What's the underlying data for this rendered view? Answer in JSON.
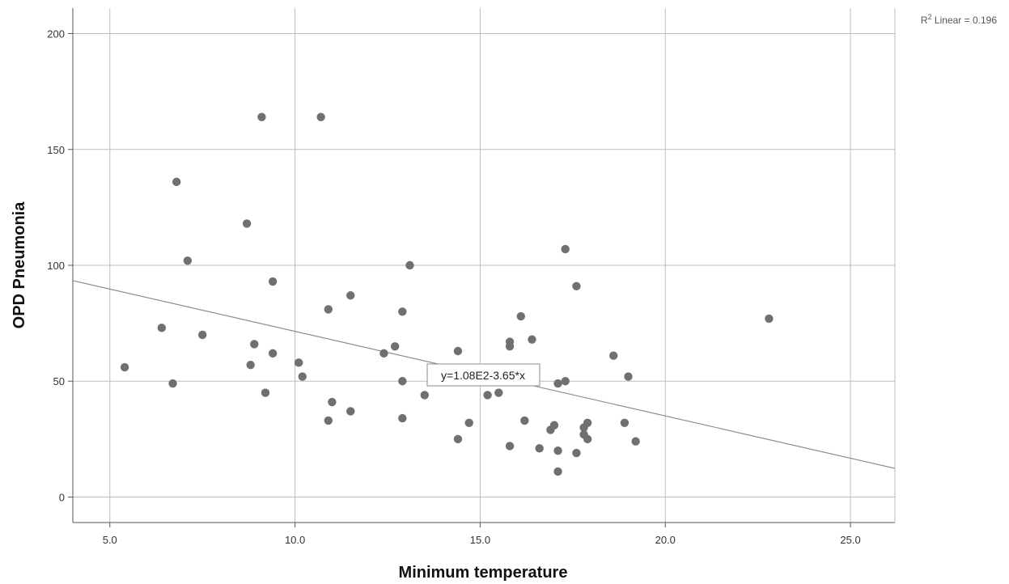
{
  "chart_data": {
    "type": "scatter",
    "xlabel": "Minimum temperature",
    "ylabel": "OPD Pneumonia",
    "xlim": [
      4.0,
      26.2
    ],
    "ylim": [
      -11,
      211
    ],
    "x_ticks": [
      5.0,
      10.0,
      15.0,
      20.0,
      25.0
    ],
    "x_tick_labels": [
      "5.0",
      "10.0",
      "15.0",
      "20.0",
      "25.0"
    ],
    "y_ticks": [
      0,
      50,
      100,
      150,
      200
    ],
    "y_tick_labels": [
      "0",
      "50",
      "100",
      "150",
      "200"
    ],
    "grid": true,
    "points": [
      {
        "x": 5.4,
        "y": 56
      },
      {
        "x": 6.4,
        "y": 73
      },
      {
        "x": 6.7,
        "y": 49
      },
      {
        "x": 6.8,
        "y": 136
      },
      {
        "x": 7.1,
        "y": 102
      },
      {
        "x": 7.5,
        "y": 70
      },
      {
        "x": 8.7,
        "y": 118
      },
      {
        "x": 8.8,
        "y": 57
      },
      {
        "x": 8.9,
        "y": 66
      },
      {
        "x": 9.1,
        "y": 164
      },
      {
        "x": 9.2,
        "y": 45
      },
      {
        "x": 9.4,
        "y": 93
      },
      {
        "x": 9.4,
        "y": 62
      },
      {
        "x": 10.1,
        "y": 58
      },
      {
        "x": 10.2,
        "y": 52
      },
      {
        "x": 10.7,
        "y": 164
      },
      {
        "x": 10.9,
        "y": 81
      },
      {
        "x": 10.9,
        "y": 33
      },
      {
        "x": 11.0,
        "y": 41
      },
      {
        "x": 11.5,
        "y": 87
      },
      {
        "x": 11.5,
        "y": 37
      },
      {
        "x": 12.4,
        "y": 62
      },
      {
        "x": 12.7,
        "y": 65
      },
      {
        "x": 12.9,
        "y": 80
      },
      {
        "x": 12.9,
        "y": 50
      },
      {
        "x": 12.9,
        "y": 34
      },
      {
        "x": 13.1,
        "y": 100
      },
      {
        "x": 13.5,
        "y": 44
      },
      {
        "x": 14.4,
        "y": 63
      },
      {
        "x": 14.4,
        "y": 25
      },
      {
        "x": 14.7,
        "y": 32
      },
      {
        "x": 15.2,
        "y": 44
      },
      {
        "x": 15.5,
        "y": 45
      },
      {
        "x": 15.8,
        "y": 67
      },
      {
        "x": 15.8,
        "y": 65
      },
      {
        "x": 15.8,
        "y": 22
      },
      {
        "x": 16.1,
        "y": 78
      },
      {
        "x": 16.2,
        "y": 33
      },
      {
        "x": 16.4,
        "y": 68
      },
      {
        "x": 16.6,
        "y": 21
      },
      {
        "x": 16.9,
        "y": 29
      },
      {
        "x": 17.0,
        "y": 31
      },
      {
        "x": 17.1,
        "y": 49
      },
      {
        "x": 17.1,
        "y": 20
      },
      {
        "x": 17.1,
        "y": 11
      },
      {
        "x": 17.3,
        "y": 107
      },
      {
        "x": 17.3,
        "y": 50
      },
      {
        "x": 17.6,
        "y": 91
      },
      {
        "x": 17.6,
        "y": 19
      },
      {
        "x": 17.8,
        "y": 30
      },
      {
        "x": 17.8,
        "y": 27
      },
      {
        "x": 17.9,
        "y": 32
      },
      {
        "x": 17.9,
        "y": 25
      },
      {
        "x": 18.6,
        "y": 61
      },
      {
        "x": 18.9,
        "y": 32
      },
      {
        "x": 19.0,
        "y": 52
      },
      {
        "x": 19.2,
        "y": 24
      },
      {
        "x": 22.8,
        "y": 77
      }
    ],
    "fit_line": {
      "intercept": 108,
      "slope": -3.65
    },
    "fit_label": "y=1.08E2-3.65*x",
    "r2_label": {
      "prefix": "R",
      "sup": "2",
      "suffix": " Linear = 0.196"
    },
    "colors": {
      "points": "#707070",
      "fit": "#8c8c8c",
      "grid": "#bdbdbd",
      "axis": "#555555"
    }
  }
}
